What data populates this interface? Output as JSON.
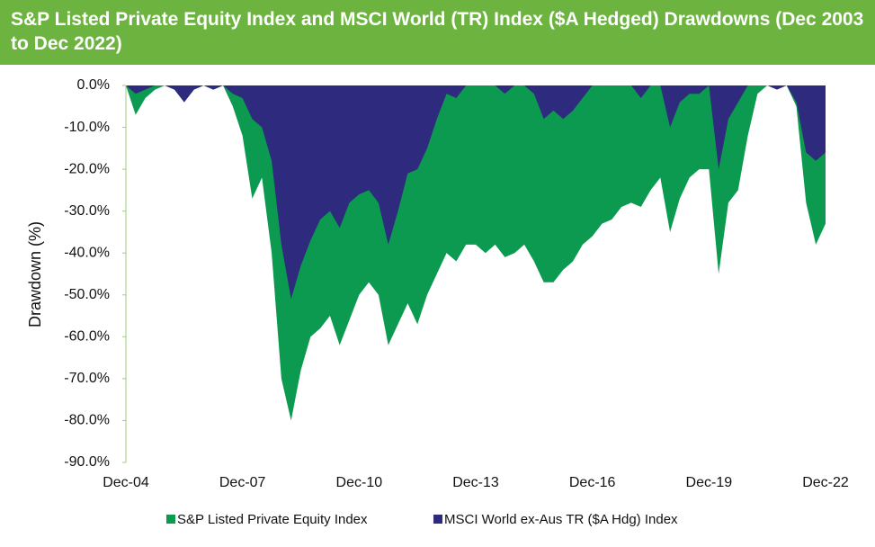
{
  "chart_data": {
    "type": "area",
    "title": "S&P Listed Private Equity Index and MSCI World (TR) Index ($A Hedged) Drawdowns (Dec 2003 to Dec 2022)",
    "y_label": "Drawdown (%)",
    "categories": [
      "Dec-04",
      null,
      null,
      null,
      null,
      null,
      null,
      null,
      null,
      null,
      null,
      null,
      "Dec-07",
      null,
      null,
      null,
      null,
      null,
      null,
      null,
      null,
      null,
      null,
      null,
      "Dec-10",
      null,
      null,
      null,
      null,
      null,
      null,
      null,
      null,
      null,
      null,
      null,
      "Dec-13",
      null,
      null,
      null,
      null,
      null,
      null,
      null,
      null,
      null,
      null,
      null,
      "Dec-16",
      null,
      null,
      null,
      null,
      null,
      null,
      null,
      null,
      null,
      null,
      null,
      "Dec-19",
      null,
      null,
      null,
      null,
      null,
      null,
      null,
      null,
      null,
      null,
      null,
      "Dec-22"
    ],
    "series": [
      {
        "name": "S&P Listed Private Equity Index",
        "color": "#0b9a4f",
        "values": [
          0,
          -7,
          -3,
          -1,
          0,
          -1,
          -4,
          -1,
          0,
          -1,
          0,
          -5,
          -12,
          -27,
          -22,
          -40,
          -70,
          -80,
          -68,
          -60,
          -58,
          -55,
          -62,
          -56,
          -50,
          -47,
          -50,
          -62,
          -57,
          -52,
          -57,
          -50,
          -45,
          -40,
          -42,
          -38,
          -38,
          -40,
          -38,
          -41,
          -40,
          -38,
          -42,
          -47,
          -47,
          -44,
          -42,
          -38,
          -36,
          -33,
          -32,
          -29,
          -28,
          -29,
          -25,
          -22,
          -35,
          -27,
          -22,
          -20,
          -20,
          -45,
          -28,
          -25,
          -12,
          -2,
          0,
          0,
          0,
          -5,
          -28,
          -38,
          -33
        ]
      },
      {
        "name": "MSCI World ex-Aus TR ($A Hdg) Index",
        "color": "#2e2a7e",
        "values": [
          0,
          -2,
          -1,
          0,
          0,
          -1,
          -4,
          -1,
          0,
          -1,
          0,
          -2,
          -3,
          -8,
          -10,
          -18,
          -38,
          -51,
          -43,
          -37,
          -32,
          -30,
          -34,
          -28,
          -26,
          -25,
          -28,
          -38,
          -30,
          -21,
          -20,
          -15,
          -8,
          -2,
          -3,
          0,
          0,
          0,
          0,
          -2,
          0,
          0,
          -2,
          -8,
          -6,
          -8,
          -6,
          -3,
          0,
          0,
          0,
          0,
          0,
          -3,
          0,
          0,
          -10,
          -4,
          -2,
          -2,
          0,
          -20,
          -8,
          -4,
          0,
          0,
          0,
          -1,
          0,
          -4,
          -16,
          -18,
          -16
        ]
      }
    ],
    "ylim": [
      -90,
      0
    ],
    "yticks": [
      {
        "value": 0,
        "label": "0.0%"
      },
      {
        "value": -10,
        "label": "-10.0%"
      },
      {
        "value": -20,
        "label": "-20.0%"
      },
      {
        "value": -30,
        "label": "-30.0%"
      },
      {
        "value": -40,
        "label": "-40.0%"
      },
      {
        "value": -50,
        "label": "-50.0%"
      },
      {
        "value": -60,
        "label": "-60.0%"
      },
      {
        "value": -70,
        "label": "-70.0%"
      },
      {
        "value": -80,
        "label": "-80.0%"
      },
      {
        "value": -90,
        "label": "-90.0%"
      }
    ],
    "grid": false,
    "legend": "bottom"
  }
}
